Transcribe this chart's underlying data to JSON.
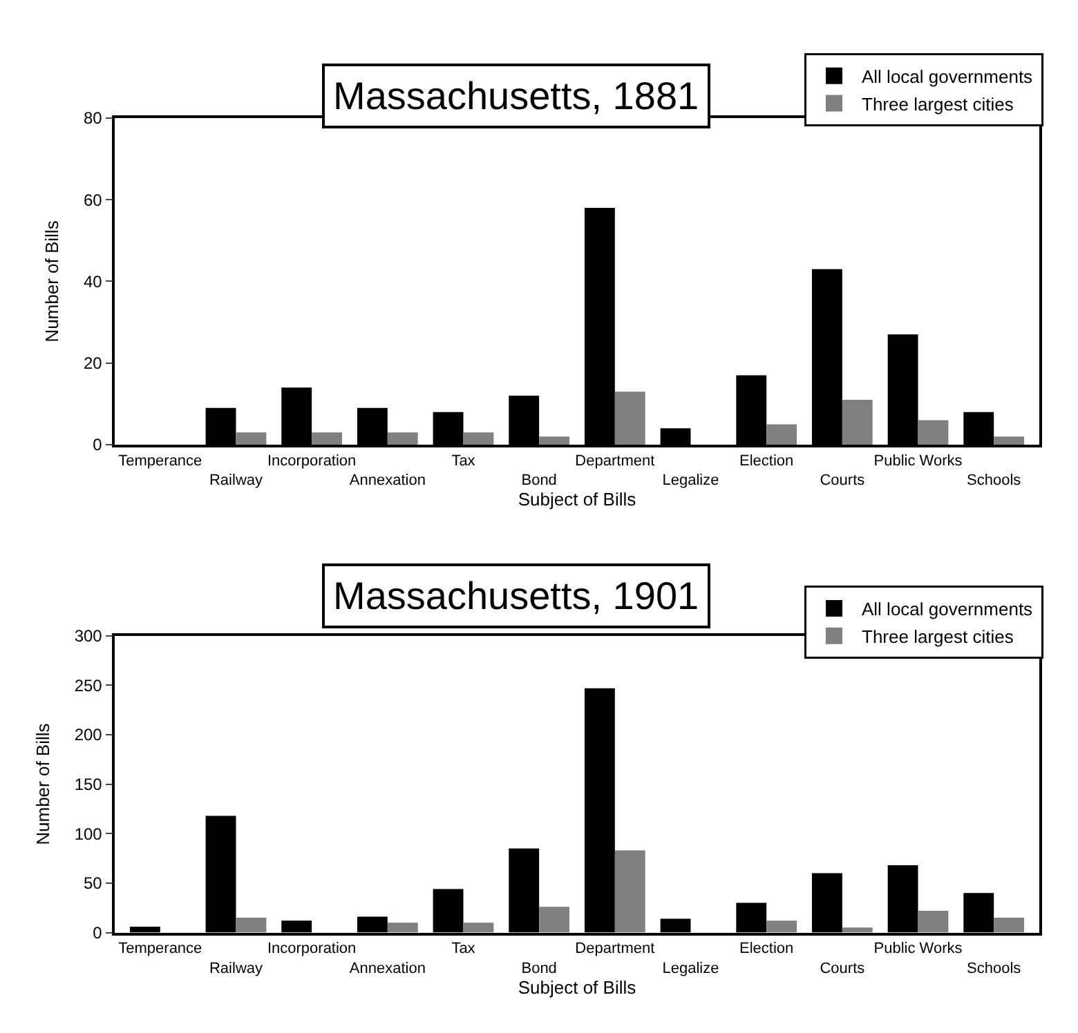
{
  "chart_data": [
    {
      "type": "bar",
      "title": "Massachusetts, 1881",
      "xlabel": "Subject of Bills",
      "ylabel": "Number of Bills",
      "categories": [
        "Temperance",
        "Railway",
        "Incorporation",
        "Annexation",
        "Tax",
        "Bond",
        "Department",
        "Legalize",
        "Election",
        "Courts",
        "Public Works",
        "Schools"
      ],
      "series": [
        {
          "name": "All local governments",
          "color": "#000000",
          "values": [
            0,
            9,
            14,
            9,
            8,
            12,
            58,
            4,
            17,
            43,
            27,
            8
          ]
        },
        {
          "name": "Three largest cities",
          "color": "#808080",
          "values": [
            0,
            3,
            3,
            3,
            3,
            2,
            13,
            0,
            5,
            11,
            6,
            2
          ]
        }
      ],
      "ylim": [
        0,
        80
      ],
      "yticks": [
        0,
        20,
        40,
        60,
        80
      ],
      "legend": "top right"
    },
    {
      "type": "bar",
      "title": "Massachusetts, 1901",
      "xlabel": "Subject of Bills",
      "ylabel": "Number of Bills",
      "categories": [
        "Temperance",
        "Railway",
        "Incorporation",
        "Annexation",
        "Tax",
        "Bond",
        "Department",
        "Legalize",
        "Election",
        "Courts",
        "Public Works",
        "Schools"
      ],
      "series": [
        {
          "name": "All local governments",
          "color": "#000000",
          "values": [
            6,
            118,
            12,
            16,
            44,
            85,
            247,
            14,
            30,
            60,
            68,
            40
          ]
        },
        {
          "name": "Three largest cities",
          "color": "#808080",
          "values": [
            0,
            15,
            0,
            10,
            10,
            26,
            83,
            0,
            12,
            5,
            22,
            15
          ]
        }
      ],
      "ylim": [
        0,
        300
      ],
      "yticks": [
        0,
        50,
        100,
        150,
        200,
        250,
        300
      ],
      "legend": "top right"
    }
  ]
}
